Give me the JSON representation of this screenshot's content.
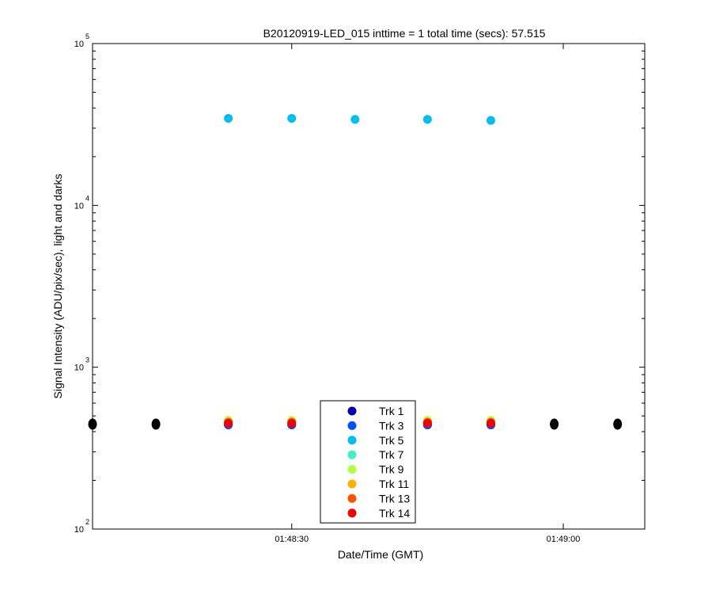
{
  "chart_data": {
    "type": "scatter",
    "title": "B20120919-LED_015 inttime = 1 total time (secs): 57.515",
    "xlabel": "Date/Time (GMT)",
    "ylabel": "Signal Intensity (ADU/pix/sec), light and darks",
    "y_scale": "log",
    "ylim": [
      100,
      100000
    ],
    "xlim": [
      "01:48:08",
      "01:49:09"
    ],
    "x_ticks": [
      "01:48:30",
      "01:49:00"
    ],
    "y_ticks": [
      {
        "base": "10",
        "exp": "2",
        "value": 100
      },
      {
        "base": "10",
        "exp": "3",
        "value": 1000
      },
      {
        "base": "10",
        "exp": "4",
        "value": 10000
      },
      {
        "base": "10",
        "exp": "5",
        "value": 100000
      }
    ],
    "grid": false,
    "legend_position": "bottom-center",
    "series": [
      {
        "name": "Trk 1",
        "color": "#0000b0",
        "x": [
          "01:48:23",
          "01:48:30",
          "01:48:37",
          "01:48:45",
          "01:48:52"
        ],
        "y": [
          440,
          440,
          440,
          440,
          440
        ]
      },
      {
        "name": "Trk 3",
        "color": "#0050ff",
        "x": [
          "01:48:23",
          "01:48:30",
          "01:48:37",
          "01:48:45",
          "01:48:52"
        ],
        "y": [
          440,
          440,
          440,
          440,
          440
        ]
      },
      {
        "name": "Trk 5",
        "color": "#00bff0",
        "x": [
          "01:48:23",
          "01:48:30",
          "01:48:37",
          "01:48:45",
          "01:48:52"
        ],
        "y": [
          34500,
          34500,
          34000,
          34000,
          33500
        ]
      },
      {
        "name": "Trk 7",
        "color": "#40f0c0",
        "x": [
          "01:48:23",
          "01:48:30",
          "01:48:37",
          "01:48:45",
          "01:48:52"
        ],
        "y": [
          465,
          465,
          460,
          465,
          465
        ]
      },
      {
        "name": "Trk 9",
        "color": "#b0ff40",
        "x": [
          "01:48:23",
          "01:48:30",
          "01:48:37",
          "01:48:45",
          "01:48:52"
        ],
        "y": [
          470,
          470,
          465,
          470,
          470
        ]
      },
      {
        "name": "Trk 11",
        "color": "#ffb000",
        "x": [
          "01:48:23",
          "01:48:30",
          "01:48:37",
          "01:48:45",
          "01:48:52"
        ],
        "y": [
          460,
          460,
          455,
          460,
          460
        ]
      },
      {
        "name": "Trk 13",
        "color": "#ff5000",
        "x": [
          "01:48:23",
          "01:48:30",
          "01:48:37",
          "01:48:45",
          "01:48:52"
        ],
        "y": [
          455,
          455,
          450,
          455,
          455
        ]
      },
      {
        "name": "Trk 14",
        "color": "#f00000",
        "x": [
          "01:48:23",
          "01:48:30",
          "01:48:37",
          "01:48:45",
          "01:48:52"
        ],
        "y": [
          450,
          450,
          445,
          450,
          450
        ]
      }
    ],
    "darks": {
      "color": "#000000",
      "x": [
        "01:48:08",
        "01:48:15",
        "01:48:59",
        "01:49:06"
      ],
      "y": [
        445,
        445,
        445,
        445
      ]
    }
  }
}
